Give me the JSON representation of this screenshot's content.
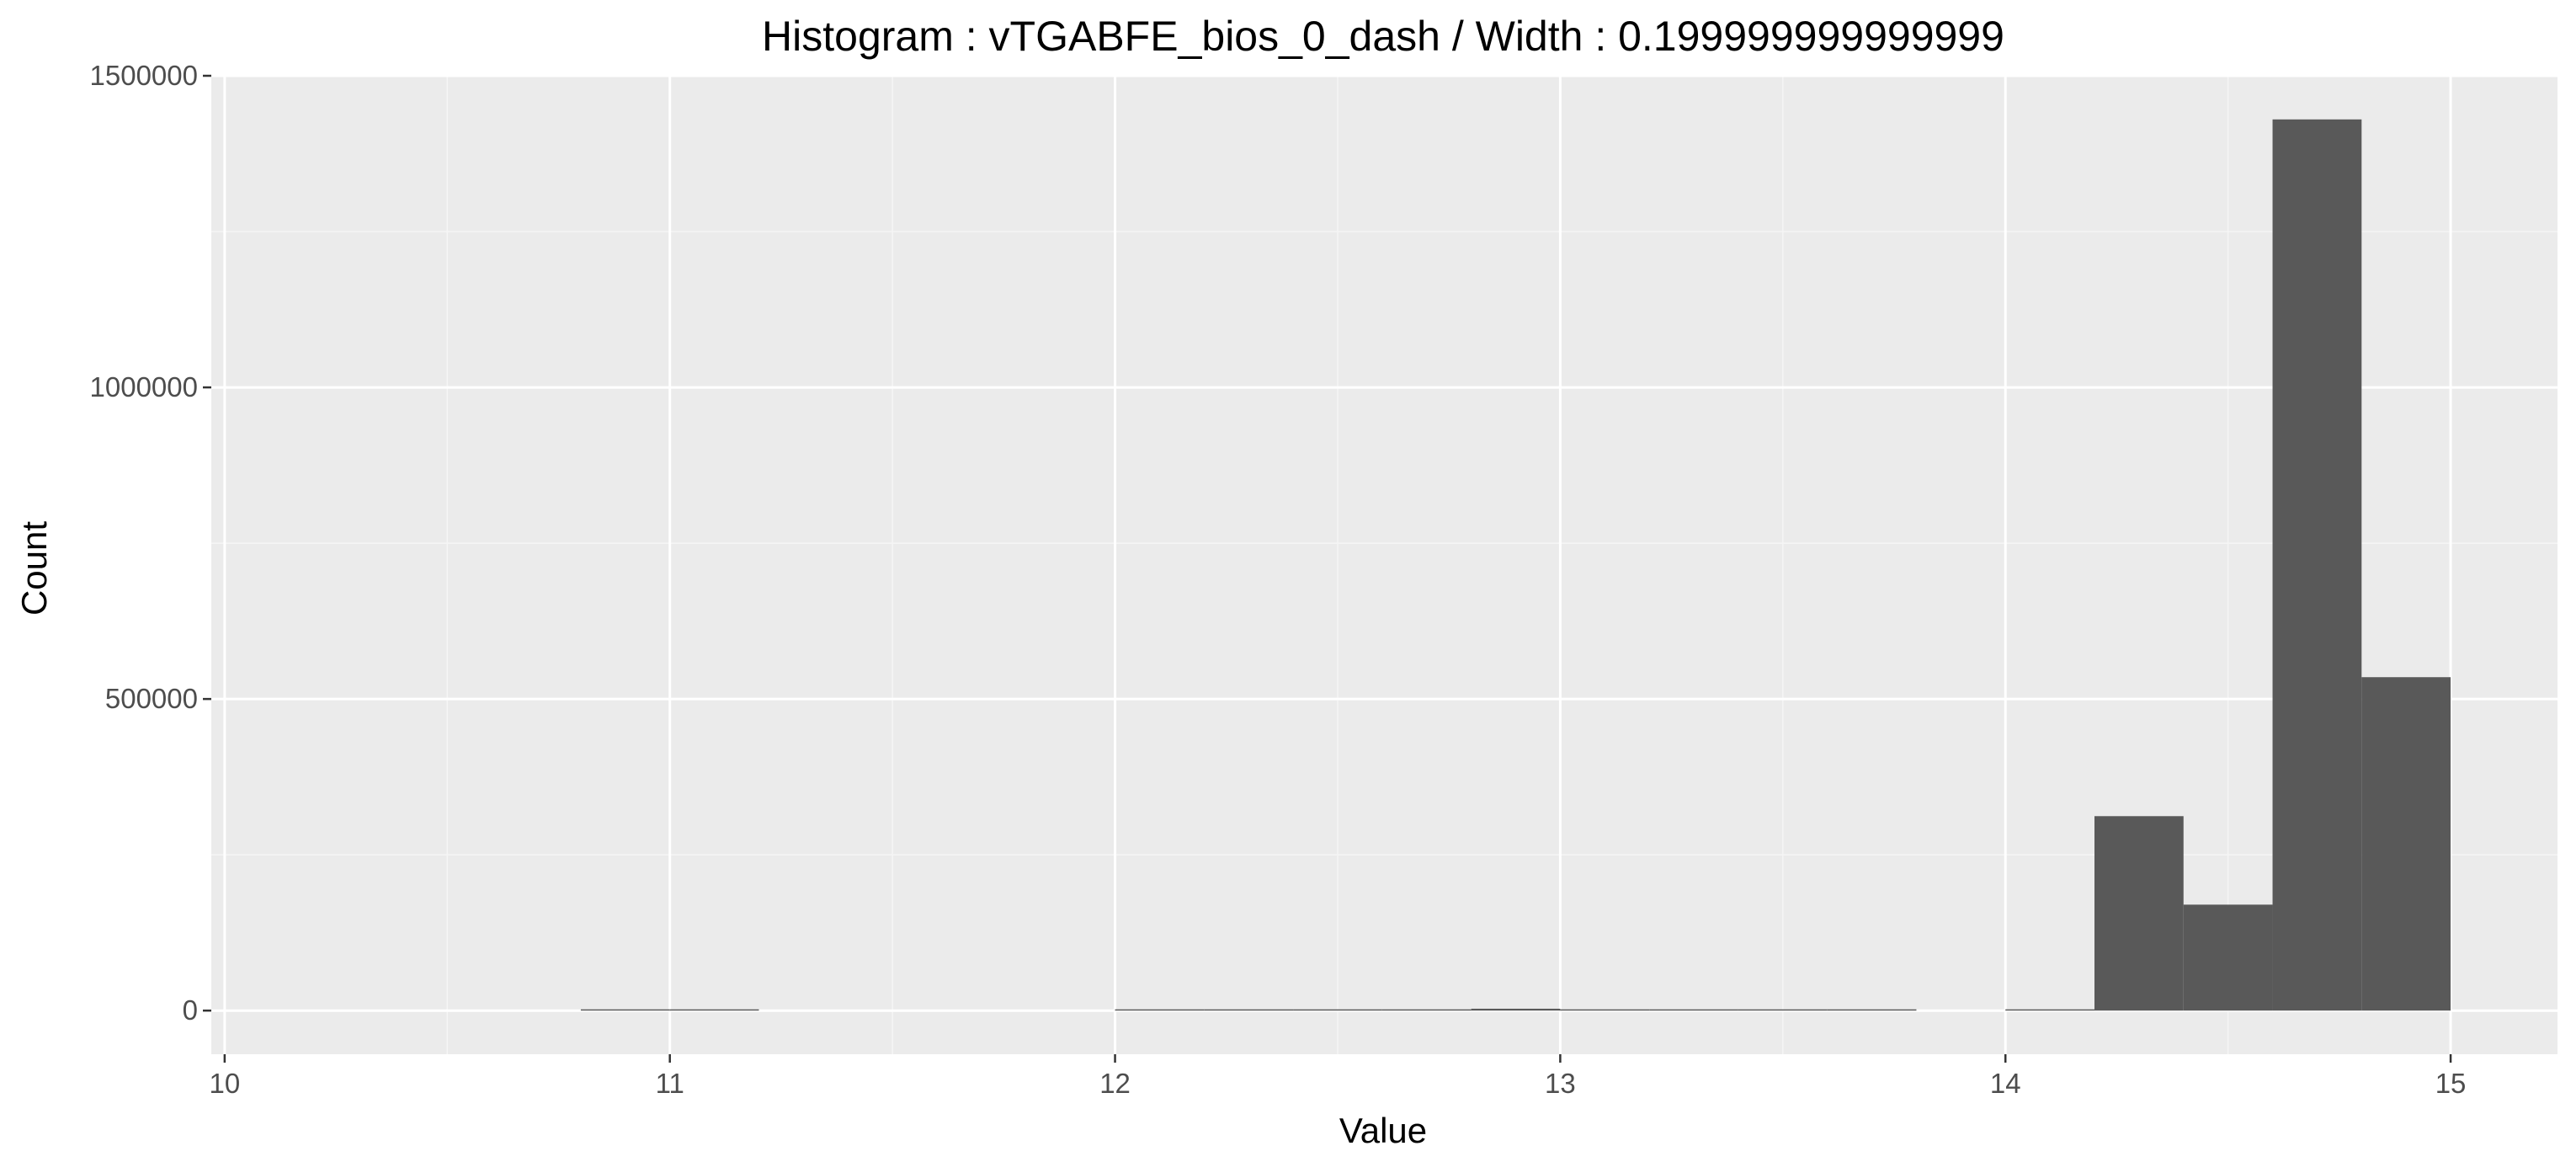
{
  "chart_data": {
    "type": "bar",
    "title": "Histogram : vTGABFE_bios_0_dash / Width : 0.199999999999999",
    "xlabel": "Value",
    "ylabel": "Count",
    "bin_width": 0.2,
    "xlim": [
      9.97,
      15.24
    ],
    "ylim": [
      -70000,
      1500000
    ],
    "x_ticks": [
      10,
      11,
      12,
      13,
      14,
      15
    ],
    "y_ticks": [
      0,
      500000,
      1000000,
      1500000
    ],
    "x_tick_labels": [
      "10",
      "11",
      "12",
      "13",
      "14",
      "15"
    ],
    "y_tick_labels": [
      "0",
      "500000",
      "1000000",
      "1500000"
    ],
    "grid": true,
    "bins": [
      {
        "start": 10.8,
        "end": 11.0,
        "count": 1500
      },
      {
        "start": 11.0,
        "end": 11.2,
        "count": 1500
      },
      {
        "start": 12.0,
        "end": 12.2,
        "count": 1000
      },
      {
        "start": 12.2,
        "end": 12.4,
        "count": 1000
      },
      {
        "start": 12.4,
        "end": 12.6,
        "count": 1000
      },
      {
        "start": 12.6,
        "end": 12.8,
        "count": 1000
      },
      {
        "start": 12.8,
        "end": 13.0,
        "count": 3000
      },
      {
        "start": 13.0,
        "end": 13.2,
        "count": 1000
      },
      {
        "start": 13.2,
        "end": 13.4,
        "count": 1000
      },
      {
        "start": 13.4,
        "end": 13.6,
        "count": 1000
      },
      {
        "start": 13.6,
        "end": 13.8,
        "count": 1000
      },
      {
        "start": 14.0,
        "end": 14.2,
        "count": 2000
      },
      {
        "start": 14.2,
        "end": 14.4,
        "count": 312000
      },
      {
        "start": 14.4,
        "end": 14.6,
        "count": 170000
      },
      {
        "start": 14.6,
        "end": 14.8,
        "count": 1430000
      },
      {
        "start": 14.8,
        "end": 15.0,
        "count": 535000
      }
    ],
    "colors": {
      "panel": "#ebebeb",
      "grid_major": "#ffffff",
      "grid_minor": "#f5f5f5",
      "bar": "#595959",
      "tick": "#333333"
    }
  }
}
